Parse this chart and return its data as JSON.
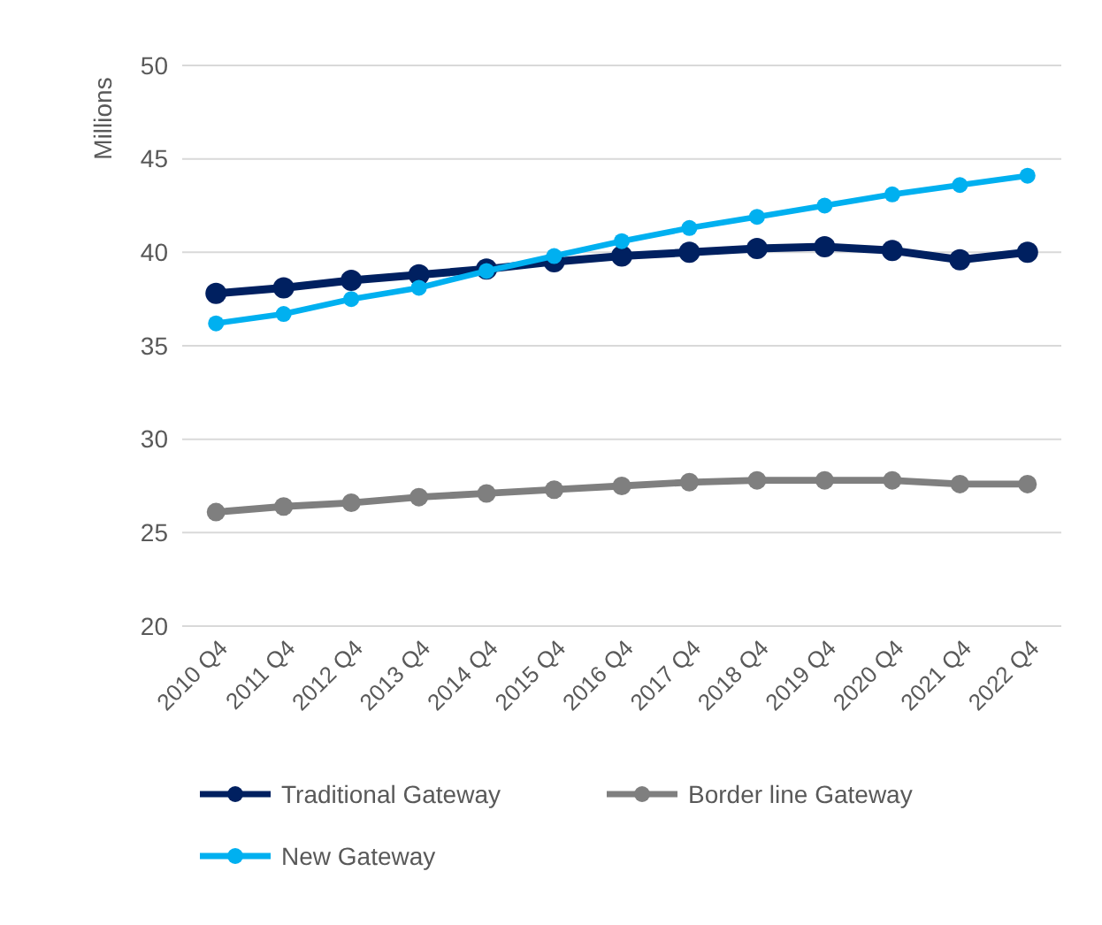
{
  "chart_data": {
    "type": "line",
    "ylabel": "Millions",
    "categories": [
      "2010 Q4",
      "2011 Q4",
      "2012 Q4",
      "2013 Q4",
      "2014 Q4",
      "2015 Q4",
      "2016 Q4",
      "2017 Q4",
      "2018 Q4",
      "2019 Q4",
      "2020 Q4",
      "2021 Q4",
      "2022 Q4"
    ],
    "series": [
      {
        "name": "Traditional Gateway",
        "color": "#002060",
        "values": [
          37.8,
          38.1,
          38.5,
          38.8,
          39.1,
          39.5,
          39.8,
          40.0,
          40.2,
          40.3,
          40.1,
          39.6,
          40.0
        ]
      },
      {
        "name": "Border line Gateway",
        "color": "#7f7f7f",
        "values": [
          26.1,
          26.4,
          26.6,
          26.9,
          27.1,
          27.3,
          27.5,
          27.7,
          27.8,
          27.8,
          27.8,
          27.6,
          27.6
        ]
      },
      {
        "name": "New Gateway",
        "color": "#00b0f0",
        "values": [
          36.2,
          36.7,
          37.5,
          38.1,
          39.0,
          39.8,
          40.6,
          41.3,
          41.9,
          42.5,
          43.1,
          43.6,
          44.1
        ]
      }
    ],
    "ylim": [
      20,
      50
    ],
    "yticks": [
      20,
      25,
      30,
      35,
      40,
      45,
      50
    ],
    "grid": "y",
    "legend": "bottom",
    "marker": "circle",
    "line_style": "solid"
  }
}
